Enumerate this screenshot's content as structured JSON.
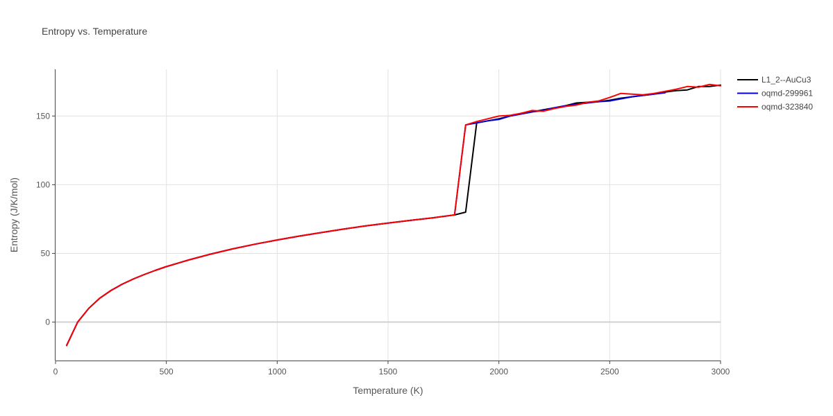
{
  "chart_data": {
    "type": "line",
    "title": "Entropy vs. Temperature",
    "xlabel": "Temperature (K)",
    "ylabel": "Entropy (J/K/mol)",
    "xlim": [
      0,
      3000
    ],
    "ylim": [
      -28,
      184
    ],
    "xticks": [
      0,
      500,
      1000,
      1500,
      2000,
      2500,
      3000
    ],
    "yticks": [
      0,
      50,
      100,
      150
    ],
    "grid": true,
    "legend_position": "top-right",
    "series": [
      {
        "name": "L1_2--AuCu3",
        "color": "#000000",
        "x": [
          50,
          100,
          150,
          200,
          250,
          300,
          350,
          400,
          450,
          500,
          600,
          700,
          800,
          900,
          1000,
          1100,
          1200,
          1300,
          1400,
          1500,
          1600,
          1700,
          1800,
          1850,
          1900,
          1950,
          2000,
          2050,
          2100,
          2150,
          2200,
          2250,
          2300,
          2350,
          2400,
          2450,
          2500,
          2550,
          2600,
          2650,
          2700,
          2750,
          2800,
          2850,
          2900,
          2950,
          3000
        ],
        "y": [
          -17,
          0,
          10,
          17.5,
          23,
          27.5,
          31.3,
          34.6,
          37.6,
          40.4,
          45.2,
          49.5,
          53.3,
          56.7,
          59.8,
          62.6,
          65.2,
          67.7,
          70,
          72.1,
          74,
          75.9,
          78,
          80,
          145,
          146.5,
          148,
          150,
          151.5,
          153,
          154.5,
          156,
          157.5,
          159.5,
          160,
          160.5,
          161.5,
          163,
          164,
          165,
          166,
          167.5,
          168.5,
          169,
          171.5,
          171.5,
          172.5
        ]
      },
      {
        "name": "oqmd-299961",
        "color": "#0000dd",
        "x": [
          50,
          100,
          150,
          200,
          250,
          300,
          350,
          400,
          450,
          500,
          600,
          700,
          800,
          900,
          1000,
          1100,
          1200,
          1300,
          1400,
          1500,
          1600,
          1700,
          1800,
          1850,
          1900,
          1950,
          2000,
          2050,
          2100,
          2150,
          2200,
          2250,
          2300,
          2350,
          2400,
          2450,
          2500,
          2550,
          2600,
          2650,
          2700,
          2750
        ],
        "y": [
          -17,
          0,
          10,
          17.5,
          23,
          27.5,
          31.3,
          34.6,
          37.6,
          40.4,
          45.2,
          49.5,
          53.3,
          56.7,
          59.8,
          62.6,
          65.2,
          67.7,
          70,
          72.1,
          74,
          75.9,
          78,
          143.5,
          145,
          146.5,
          147.5,
          150,
          151.5,
          153,
          154,
          156,
          157.5,
          158.5,
          159.5,
          160.5,
          161,
          162.5,
          164,
          165,
          166,
          167
        ]
      },
      {
        "name": "oqmd-323840",
        "color": "#ff0000",
        "x": [
          50,
          100,
          150,
          200,
          250,
          300,
          350,
          400,
          450,
          500,
          600,
          700,
          800,
          900,
          1000,
          1100,
          1200,
          1300,
          1400,
          1500,
          1600,
          1700,
          1800,
          1850,
          1900,
          1950,
          2000,
          2050,
          2100,
          2150,
          2200,
          2250,
          2300,
          2350,
          2400,
          2450,
          2500,
          2550,
          2600,
          2650,
          2700,
          2750,
          2800,
          2850,
          2900,
          2950,
          3000
        ],
        "y": [
          -17,
          0,
          10,
          17.5,
          23,
          27.5,
          31.3,
          34.6,
          37.6,
          40.4,
          45.2,
          49.5,
          53.3,
          56.7,
          59.8,
          62.6,
          65.2,
          67.7,
          70,
          72.1,
          74,
          75.9,
          78,
          143.5,
          146,
          148,
          150,
          150.5,
          152,
          154,
          153.5,
          155.5,
          157,
          158,
          160,
          161,
          163.5,
          166.5,
          166,
          165.5,
          166.5,
          168,
          169.5,
          171.5,
          171,
          173,
          172
        ]
      }
    ]
  }
}
